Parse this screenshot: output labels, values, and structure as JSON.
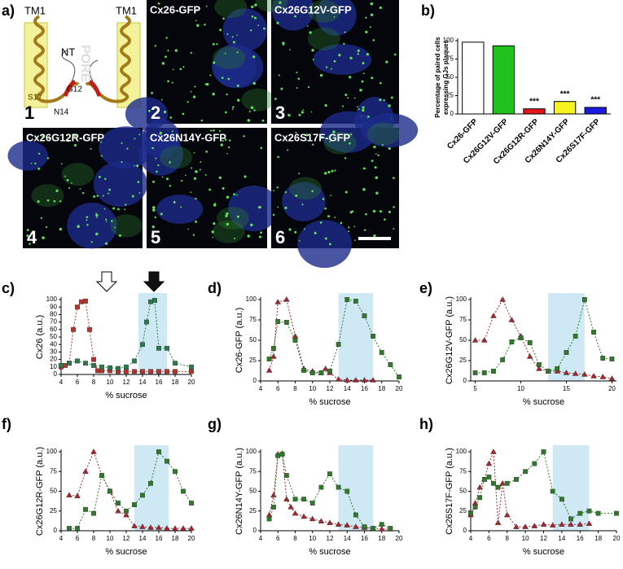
{
  "figure_a": {
    "label": "a)",
    "diagram": {
      "tm1_left": "TM1",
      "tm1_right": "TM1",
      "nt": "NT",
      "pore": "PORE",
      "g12": "G12",
      "s17": "S17",
      "n14": "N14",
      "number": "1"
    },
    "images": [
      {
        "title": "Cx26-GFP",
        "number": "2"
      },
      {
        "title": "Cx26G12V-GFP",
        "number": "3"
      },
      {
        "title": "Cx26G12R-GFP",
        "number": "4"
      },
      {
        "title": "Cx26N14Y-GFP",
        "number": "5"
      },
      {
        "title": "Cx26S17F-GFP",
        "number": "6"
      }
    ]
  },
  "chart_data": [
    {
      "type": "bar",
      "panel_label": "b)",
      "ylabel": [
        "Percentage of paired cells",
        "expressing GJs plaques"
      ],
      "categories": [
        "Cx26-GFP",
        "Cx26G12V-GFP",
        "Cx26G12R-GFP",
        "Cx26N14Y-GFP",
        "Cx26S17F-GFP"
      ],
      "values": [
        98,
        93,
        7,
        17,
        9
      ],
      "colors": [
        "#ffffff",
        "#22c21e",
        "#e8141b",
        "#f7f21c",
        "#1a1ae0"
      ],
      "annotations": [
        "***",
        "***",
        "***"
      ],
      "ylim": [
        0,
        100
      ],
      "yticks": [
        0,
        25,
        50,
        75,
        100
      ]
    },
    {
      "type": "line",
      "panel_label": "c)",
      "ylabel": "Cx26 (a.u.)",
      "xlabel": "% sucrose",
      "xlim": [
        4,
        20
      ],
      "xticks": [
        4,
        6,
        8,
        10,
        12,
        14,
        16,
        18,
        20
      ],
      "ylim": [
        0,
        100
      ],
      "yticks": [
        0,
        10,
        20,
        30,
        40,
        50,
        60,
        70,
        80,
        90,
        100
      ],
      "band": [
        13.5,
        17
      ],
      "series": [
        {
          "color": "#b8322a",
          "marker": "square",
          "x": [
            4,
            4.5,
            5,
            5.5,
            6,
            6.5,
            7,
            7.5,
            8,
            8.5,
            9,
            10,
            11,
            12,
            13,
            14,
            15,
            16,
            17,
            18,
            20
          ],
          "values": [
            10,
            12,
            15,
            60,
            90,
            97,
            98,
            60,
            20,
            5,
            5,
            5,
            4,
            4,
            4,
            4,
            4,
            4,
            4,
            4,
            4
          ]
        },
        {
          "color": "#2a7a4a",
          "marker": "square",
          "x": [
            4,
            5,
            6,
            7,
            8,
            9,
            10,
            11,
            12,
            13,
            14,
            14.5,
            15,
            15.5,
            16,
            17,
            18,
            20
          ],
          "values": [
            12,
            15,
            18,
            15,
            12,
            10,
            9,
            8,
            10,
            18,
            40,
            70,
            97,
            99,
            35,
            35,
            15,
            10
          ]
        }
      ]
    },
    {
      "type": "line",
      "panel_label": "d)",
      "ylabel": "Cx26-GFP (a.u.)",
      "xlabel": "% sucrose",
      "xlim": [
        4,
        20
      ],
      "xticks": [
        4,
        6,
        8,
        10,
        12,
        14,
        16,
        18,
        20
      ],
      "ylim": [
        0,
        100
      ],
      "yticks": [
        0,
        25,
        50,
        75,
        100
      ],
      "band": [
        13,
        17
      ],
      "series": [
        {
          "color": "#a3262e",
          "marker": "triangle",
          "x": [
            5,
            5.5,
            6,
            7,
            8,
            9,
            10,
            11,
            11.5,
            12,
            13,
            14,
            15,
            16,
            17
          ],
          "values": [
            13,
            30,
            97,
            100,
            55,
            15,
            12,
            10,
            15,
            10,
            2,
            1,
            1,
            1,
            1
          ]
        },
        {
          "color": "#2f7a2a",
          "marker": "square",
          "x": [
            5,
            5.5,
            6,
            7,
            8,
            9,
            10,
            11,
            12,
            13,
            14,
            15,
            16,
            17,
            18,
            19,
            20
          ],
          "values": [
            27,
            40,
            73,
            72,
            50,
            13,
            10,
            10,
            12,
            45,
            100,
            98,
            80,
            55,
            35,
            20,
            5
          ]
        }
      ]
    },
    {
      "type": "line",
      "panel_label": "e)",
      "ylabel": "Cx26G12V-GFP (a.u.)",
      "xlabel": "% sucrose",
      "xlim": [
        4.5,
        20.5
      ],
      "xticks": [
        5,
        10,
        15,
        20
      ],
      "ylim": [
        0,
        100
      ],
      "yticks": [
        0,
        25,
        50,
        75,
        100
      ],
      "band": [
        13,
        17
      ],
      "series": [
        {
          "color": "#a3262e",
          "marker": "triangle",
          "x": [
            5,
            6,
            7,
            8,
            9,
            10,
            11,
            12,
            13,
            14,
            15,
            16,
            17,
            18,
            19,
            20
          ],
          "values": [
            50,
            50,
            80,
            100,
            75,
            55,
            30,
            15,
            12,
            12,
            10,
            9,
            8,
            6,
            5,
            3
          ]
        },
        {
          "color": "#2f7a2a",
          "marker": "square",
          "x": [
            5,
            6,
            7,
            8,
            9,
            10,
            11,
            12,
            13,
            14,
            15,
            16,
            17,
            18,
            19,
            20
          ],
          "values": [
            10,
            10,
            12,
            26,
            48,
            53,
            47,
            20,
            12,
            15,
            35,
            55,
            100,
            60,
            28,
            27
          ]
        }
      ]
    },
    {
      "type": "line",
      "panel_label": "f)",
      "ylabel": "Cx26G12R-GFP (a.u.)",
      "xlabel": "% sucrose",
      "xlim": [
        4,
        20
      ],
      "xticks": [
        4,
        6,
        8,
        10,
        12,
        14,
        16,
        18,
        20
      ],
      "ylim": [
        0,
        100
      ],
      "yticks": [
        0,
        25,
        50,
        75,
        100
      ],
      "band": [
        13,
        17.2
      ],
      "series": [
        {
          "color": "#a3262e",
          "marker": "triangle",
          "x": [
            5,
            6,
            7,
            8,
            9,
            10,
            11,
            12,
            13,
            14,
            15,
            16,
            17,
            18,
            19,
            20
          ],
          "values": [
            45,
            44,
            75,
            100,
            70,
            50,
            25,
            20,
            6,
            5,
            4,
            4,
            3,
            3,
            3,
            3
          ]
        },
        {
          "color": "#2f7a2a",
          "marker": "square",
          "x": [
            5,
            6,
            7,
            8,
            9,
            10,
            11,
            12,
            13,
            14,
            15,
            16,
            17,
            18,
            19,
            20
          ],
          "values": [
            3,
            3,
            27,
            22,
            70,
            50,
            35,
            25,
            33,
            45,
            60,
            100,
            88,
            75,
            50,
            35
          ]
        }
      ]
    },
    {
      "type": "line",
      "panel_label": "g)",
      "ylabel": "Cx26N14Y-GFP (a.u.)",
      "xlabel": "% sucrose",
      "xlim": [
        4,
        20
      ],
      "xticks": [
        4,
        6,
        8,
        10,
        12,
        14,
        16,
        18,
        20
      ],
      "ylim": [
        0,
        100
      ],
      "yticks": [
        0,
        25,
        50,
        75,
        100
      ],
      "band": [
        13,
        17
      ],
      "series": [
        {
          "color": "#a3262e",
          "marker": "triangle",
          "x": [
            5,
            5.5,
            6,
            6.5,
            7,
            7.5,
            8,
            9,
            10,
            11,
            12,
            13,
            14,
            15,
            16,
            17,
            18,
            19
          ],
          "values": [
            20,
            45,
            97,
            98,
            40,
            30,
            22,
            18,
            15,
            12,
            10,
            8,
            7,
            5,
            4,
            3,
            2,
            2
          ]
        },
        {
          "color": "#2f7a2a",
          "marker": "square",
          "x": [
            5,
            5.5,
            6,
            6.5,
            7,
            8,
            9,
            10,
            11,
            12,
            13,
            14,
            15,
            16,
            17,
            18,
            19
          ],
          "values": [
            15,
            30,
            95,
            97,
            70,
            40,
            40,
            35,
            55,
            72,
            55,
            50,
            20,
            5,
            3,
            8,
            3
          ]
        }
      ]
    },
    {
      "type": "line",
      "panel_label": "h)",
      "ylabel": "Cx26S17F-GFP (a.u.)",
      "xlabel": "% sucrose",
      "xlim": [
        4,
        20
      ],
      "xticks": [
        4,
        6,
        8,
        10,
        12,
        14,
        16,
        18,
        20
      ],
      "ylim": [
        0,
        100
      ],
      "yticks": [
        0,
        25,
        50,
        75,
        100
      ],
      "band": [
        13,
        17
      ],
      "series": [
        {
          "color": "#a3262e",
          "marker": "triangle",
          "x": [
            4,
            4.5,
            5,
            5.5,
            6,
            6.5,
            7,
            7.5,
            8,
            9,
            10,
            11,
            12,
            13,
            14,
            15,
            16,
            17
          ],
          "values": [
            20,
            35,
            55,
            65,
            85,
            100,
            10,
            60,
            20,
            5,
            5,
            6,
            8,
            7,
            8,
            8,
            8,
            9
          ]
        },
        {
          "color": "#2f7a2a",
          "marker": "square",
          "x": [
            4,
            4.5,
            5,
            5.5,
            6,
            6.5,
            7,
            8,
            9,
            10,
            11,
            12,
            13,
            14,
            15,
            16,
            17,
            18,
            20
          ],
          "values": [
            22,
            30,
            42,
            65,
            68,
            60,
            55,
            60,
            65,
            75,
            85,
            100,
            50,
            40,
            15,
            22,
            25,
            22,
            22
          ]
        }
      ]
    }
  ]
}
